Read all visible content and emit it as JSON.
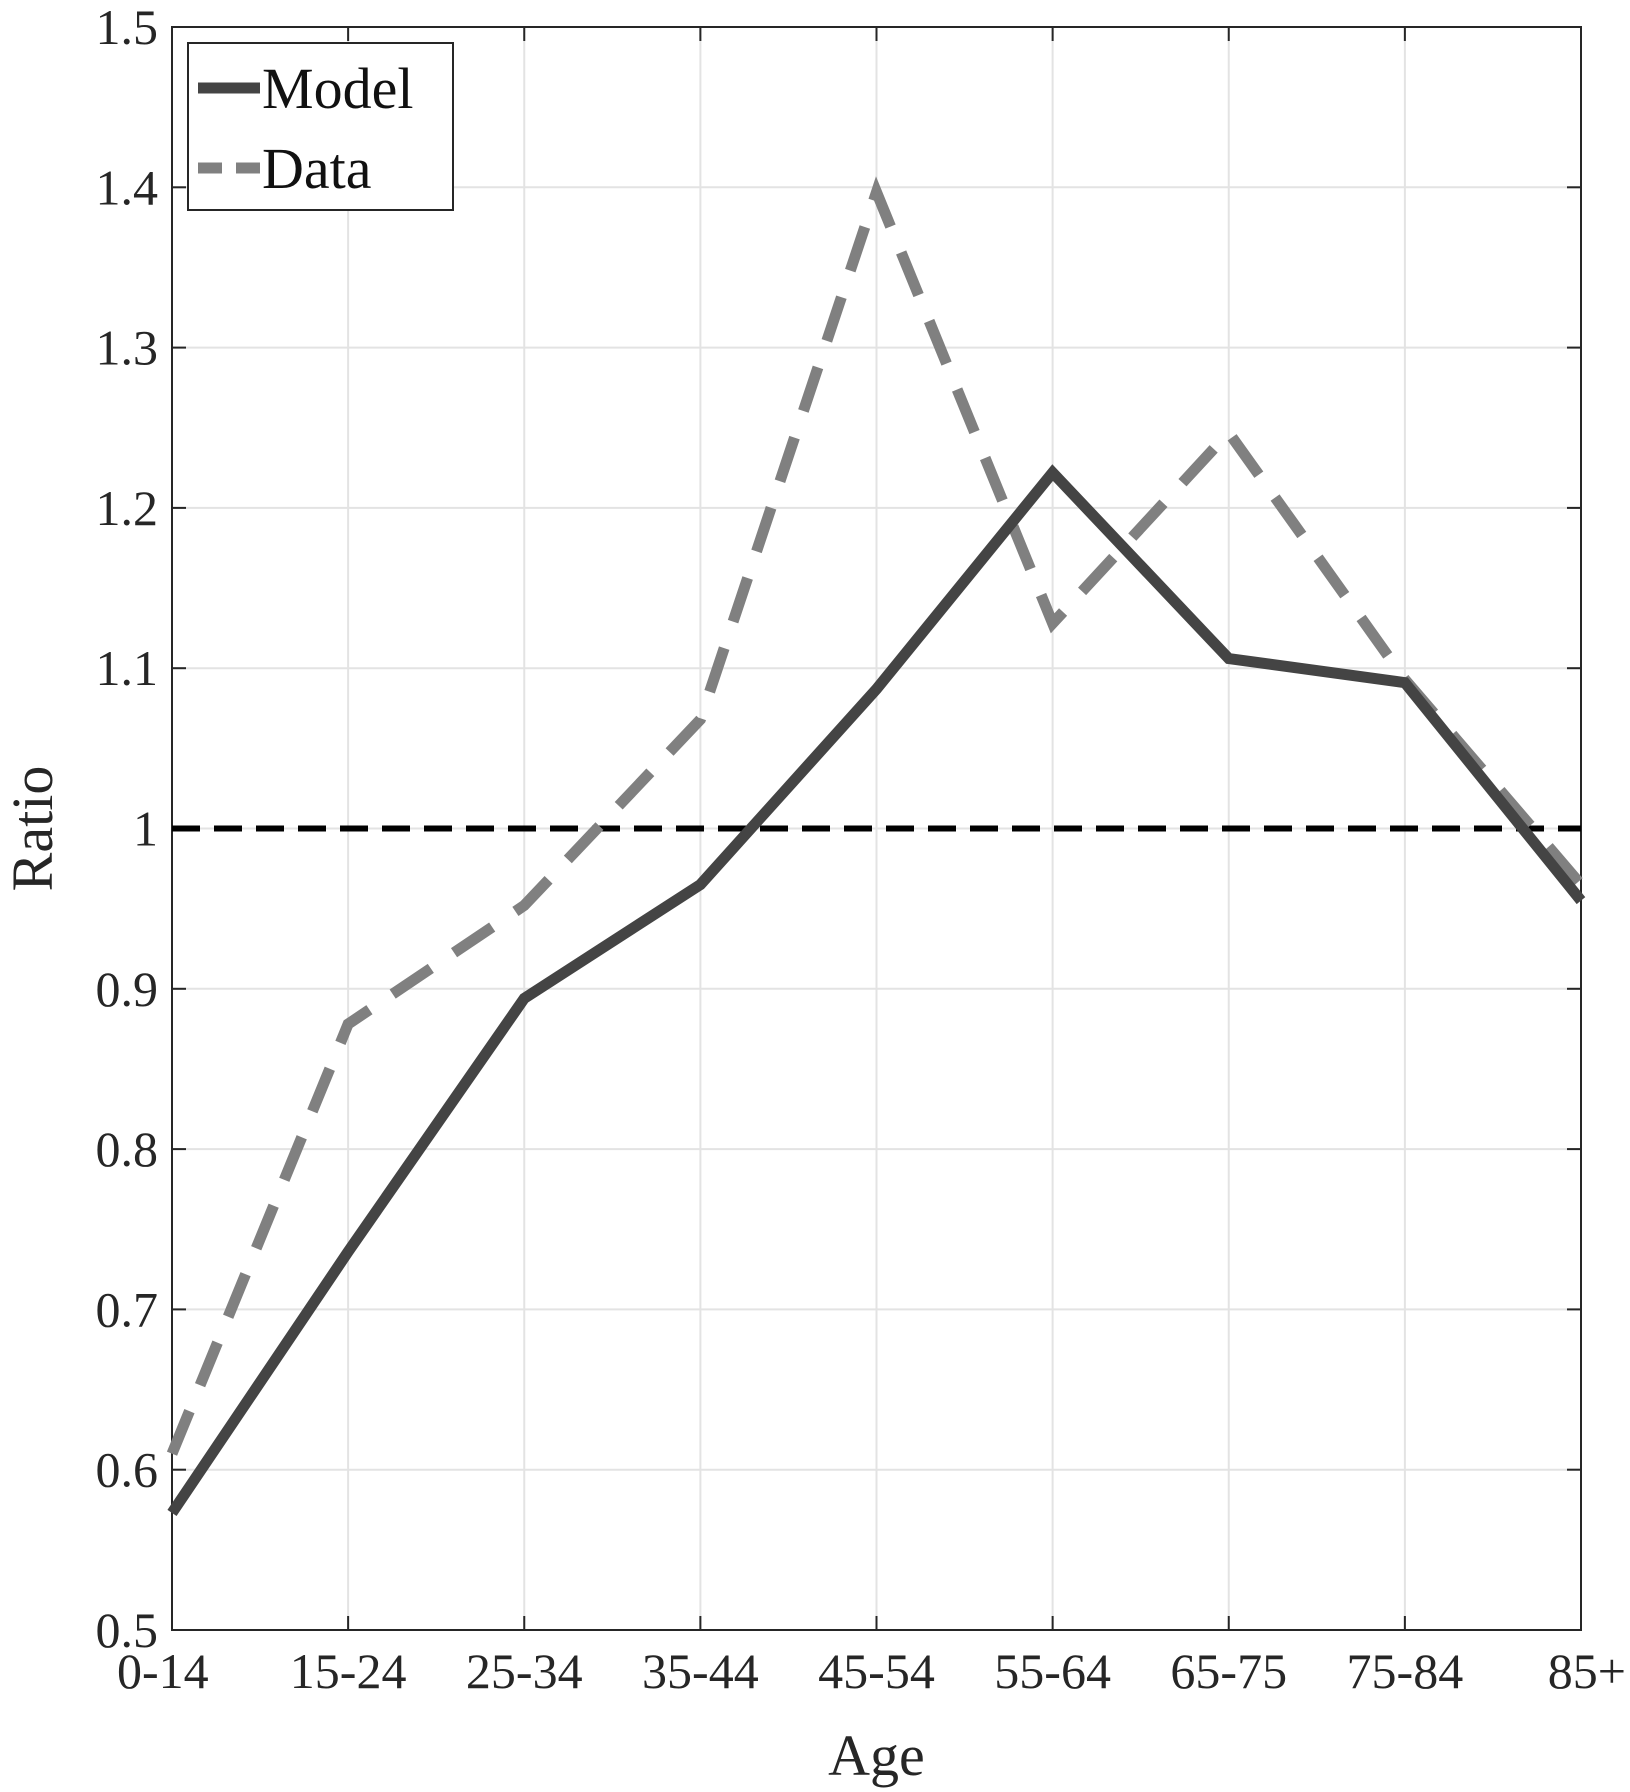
{
  "chart_data": {
    "type": "line",
    "categories": [
      "0-14",
      "15-24",
      "25-34",
      "35-44",
      "45-54",
      "55-64",
      "65-75",
      "75-84",
      "85+"
    ],
    "series": [
      {
        "name": "Model",
        "style": "solid",
        "color": "#444444",
        "values": [
          0.573,
          0.736,
          0.894,
          0.965,
          1.087,
          1.222,
          1.106,
          1.091,
          0.955
        ]
      },
      {
        "name": "Data",
        "style": "dashed",
        "color": "#808080",
        "values": [
          0.61,
          0.878,
          0.952,
          1.068,
          1.397,
          1.128,
          1.247,
          1.093,
          0.965
        ]
      }
    ],
    "reference_line": {
      "y": 1.0,
      "style": "dashed",
      "color": "#000000"
    },
    "xlabel": "Age",
    "ylabel": "Ratio",
    "ylim": [
      0.5,
      1.5
    ],
    "yticks": [
      "0.5",
      "0.6",
      "0.7",
      "0.8",
      "0.9",
      "1",
      "1.1",
      "1.2",
      "1.3",
      "1.4",
      "1.5"
    ],
    "grid": true,
    "legend_position": "top-left"
  }
}
